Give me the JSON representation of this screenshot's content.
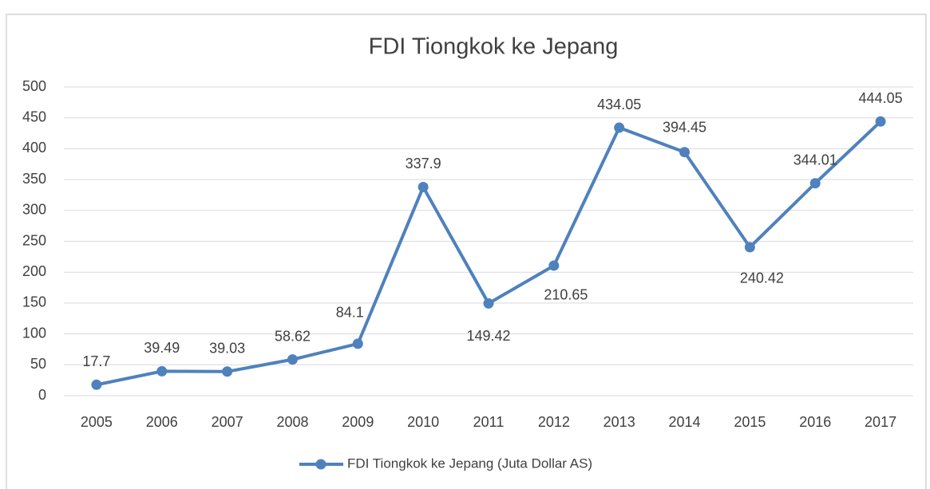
{
  "chart_data": {
    "type": "line",
    "title": "FDI Tiongkok ke Jepang",
    "categories": [
      "2005",
      "2006",
      "2007",
      "2008",
      "2009",
      "2010",
      "2011",
      "2012",
      "2013",
      "2014",
      "2015",
      "2016",
      "2017"
    ],
    "series": [
      {
        "name": "FDI Tiongkok ke Jepang (Juta Dollar AS)",
        "color": "#4f81bd",
        "values": [
          17.7,
          39.49,
          39.03,
          58.62,
          84.1,
          337.9,
          149.42,
          210.65,
          434.05,
          394.45,
          240.42,
          344.01,
          444.05
        ]
      }
    ],
    "ylim": [
      0,
      500
    ],
    "yticks": [
      0,
      50,
      100,
      150,
      200,
      250,
      300,
      350,
      400,
      450,
      500
    ],
    "grid": true,
    "legend": "bottom"
  }
}
